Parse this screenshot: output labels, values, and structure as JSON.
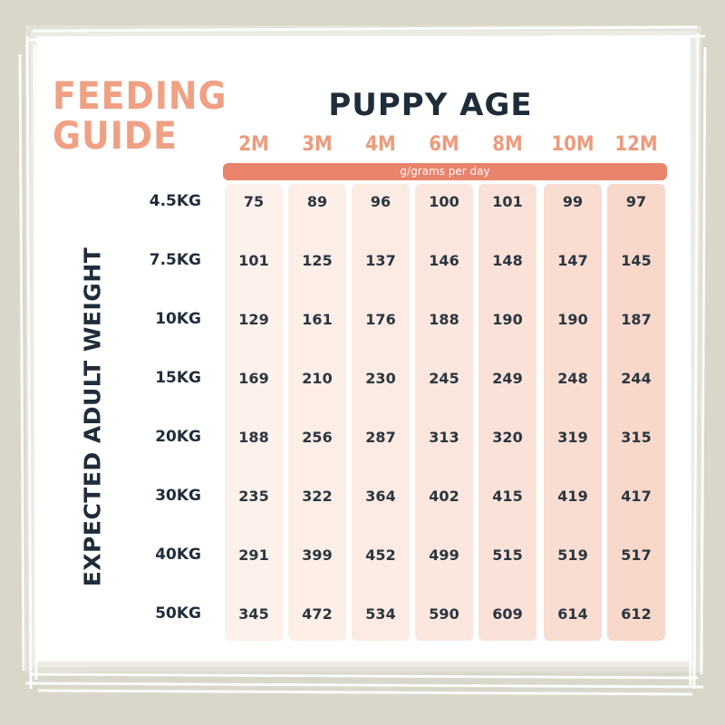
{
  "guide": {
    "title_line1": "FEEDING",
    "title_line2": "GUIDE"
  },
  "colors": {
    "background": "#d9d7c9",
    "card": "#ffffff",
    "accent": "#f0a083",
    "unit_bar": "#e9836c",
    "text_dark": "#1f2d3a"
  },
  "chart_data": {
    "type": "table",
    "title": "PUPPY AGE",
    "unit_label": "g/grams per day",
    "xlabel": "PUPPY AGE",
    "ylabel": "EXPECTED ADULT WEIGHT",
    "columns": [
      "2M",
      "3M",
      "4M",
      "6M",
      "8M",
      "10M",
      "12M"
    ],
    "rows": [
      {
        "label": "4.5KG",
        "values": [
          75,
          89,
          96,
          100,
          101,
          99,
          97
        ]
      },
      {
        "label": "7.5KG",
        "values": [
          101,
          125,
          137,
          146,
          148,
          147,
          145
        ]
      },
      {
        "label": "10KG",
        "values": [
          129,
          161,
          176,
          188,
          190,
          190,
          187
        ]
      },
      {
        "label": "15KG",
        "values": [
          169,
          210,
          230,
          245,
          249,
          248,
          244
        ]
      },
      {
        "label": "20KG",
        "values": [
          188,
          256,
          287,
          313,
          320,
          319,
          315
        ]
      },
      {
        "label": "30KG",
        "values": [
          235,
          322,
          364,
          402,
          415,
          419,
          417
        ]
      },
      {
        "label": "40KG",
        "values": [
          291,
          399,
          452,
          499,
          515,
          519,
          517
        ]
      },
      {
        "label": "50KG",
        "values": [
          345,
          472,
          534,
          590,
          609,
          614,
          612
        ]
      }
    ]
  }
}
